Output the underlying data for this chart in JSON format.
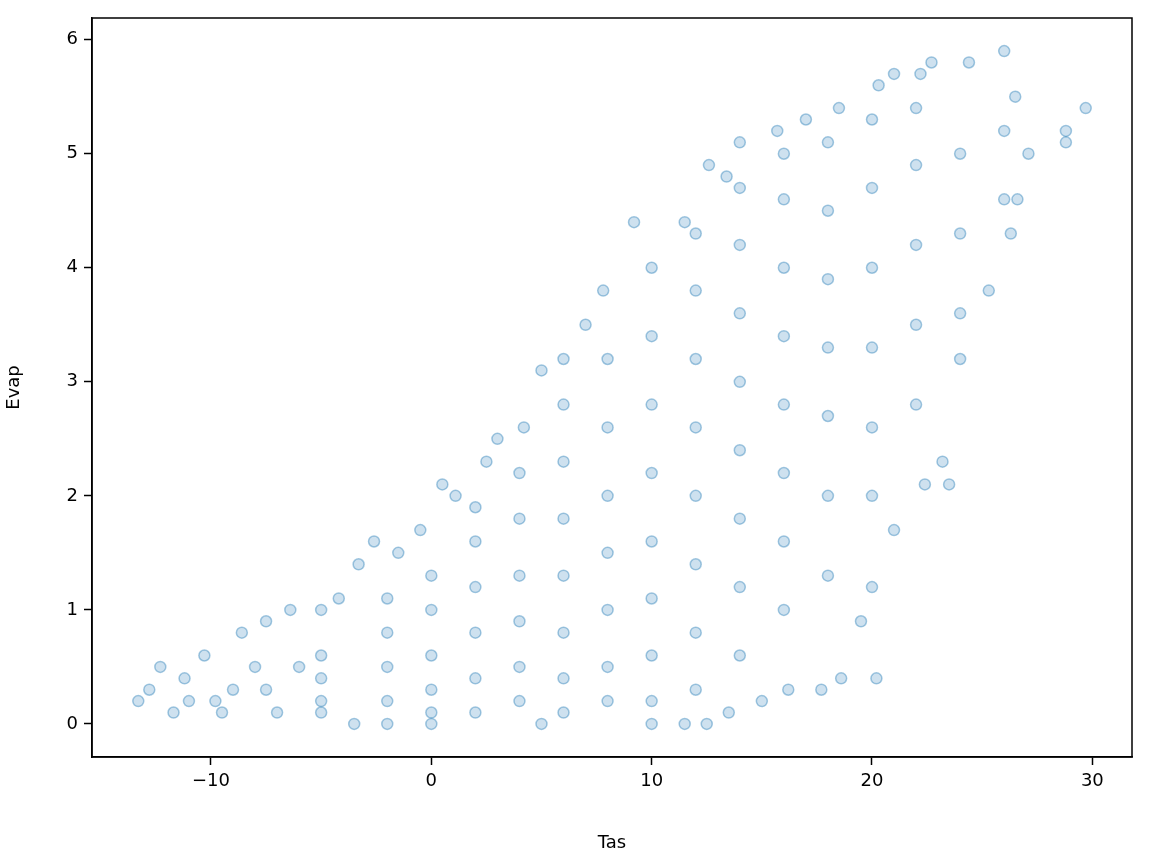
{
  "chart_data": {
    "type": "scatter",
    "xlabel": "Tas",
    "ylabel": "Evap",
    "color": "#1f77b4",
    "marker": "circle",
    "legend": false,
    "grid": false,
    "xlim": [
      -15.4,
      31.8
    ],
    "ylim": [
      -0.29,
      6.19
    ],
    "xticks": [
      {
        "value": -10,
        "label": "−10"
      },
      0,
      10,
      20,
      30
    ],
    "yticks": [
      0,
      1,
      2,
      3,
      4,
      5,
      6
    ],
    "x": [
      -13.3,
      -12.8,
      -12.3,
      -11.7,
      -11.2,
      -10.3,
      -9.8,
      -8.6,
      -8.0,
      -7.5,
      -6.4,
      -5.0,
      -4.2,
      -3.3,
      -2.6,
      -1.5,
      -0.5,
      0.5,
      1.1,
      2.5,
      3.0,
      4.2,
      5.0,
      6.0,
      7.0,
      7.8,
      9.2,
      10.0,
      11.5,
      12.6,
      13.4,
      14.0,
      15.7,
      17.0,
      18.5,
      20.3,
      21.0,
      22.2,
      22.7,
      24.4,
      26.0,
      26.5,
      28.8,
      29.7,
      28.8,
      27.1,
      26.6,
      26.3,
      25.3,
      24.0,
      23.5,
      23.2,
      22.4,
      21.0,
      20.0,
      20.2,
      19.5,
      18.6,
      17.7,
      16.2,
      15.0,
      13.5,
      12.5,
      11.5,
      10.0,
      5.0,
      0.0,
      -3.5,
      -2.0,
      -9.5,
      -7.0,
      -5.0,
      -7.5,
      -9.0,
      -11.0,
      -6.0,
      -5,
      -5,
      -5,
      -2,
      -2,
      -2,
      -2,
      0,
      0,
      0,
      0,
      0,
      2,
      2,
      2,
      2,
      2,
      2,
      4,
      4,
      4,
      4,
      4,
      4,
      6,
      6,
      6,
      6,
      6,
      6,
      6,
      8,
      8,
      8,
      8,
      8,
      8,
      8,
      10,
      10,
      10,
      10,
      10,
      10,
      10,
      12,
      12,
      12,
      12,
      12,
      12,
      12,
      12,
      14,
      14,
      14,
      14,
      14,
      14,
      14,
      14,
      16,
      16,
      16,
      16,
      16,
      16,
      16,
      16,
      18,
      18,
      18,
      18,
      18,
      18,
      18,
      20,
      20,
      20,
      20,
      20,
      20,
      22,
      22,
      22,
      22,
      22,
      24,
      24,
      24,
      26,
      26
    ],
    "values": [
      0.2,
      0.3,
      0.5,
      0.1,
      0.4,
      0.6,
      0.2,
      0.8,
      0.5,
      0.9,
      1.0,
      1.0,
      1.1,
      1.4,
      1.6,
      1.5,
      1.7,
      2.1,
      2.0,
      2.3,
      2.5,
      2.6,
      3.1,
      3.2,
      3.5,
      3.8,
      4.4,
      4.0,
      4.4,
      4.9,
      4.8,
      5.1,
      5.2,
      5.3,
      5.4,
      5.6,
      5.7,
      5.7,
      5.8,
      5.8,
      5.9,
      5.5,
      5.2,
      5.4,
      5.1,
      5.0,
      4.6,
      4.3,
      3.8,
      3.2,
      2.1,
      2.3,
      2.1,
      1.7,
      1.2,
      0.4,
      0.9,
      0.4,
      0.3,
      0.3,
      0.2,
      0.1,
      0.0,
      0.0,
      0.0,
      0.0,
      0.0,
      0.0,
      0.0,
      0.1,
      0.1,
      0.1,
      0.3,
      0.3,
      0.2,
      0.5,
      0.2,
      0.4,
      0.6,
      0.2,
      0.5,
      0.8,
      1.1,
      0.1,
      0.3,
      0.6,
      1.0,
      1.3,
      0.1,
      0.4,
      0.8,
      1.2,
      1.6,
      1.9,
      0.2,
      0.5,
      0.9,
      1.3,
      1.8,
      2.2,
      0.1,
      0.4,
      0.8,
      1.3,
      1.8,
      2.3,
      2.8,
      0.2,
      0.5,
      1.0,
      1.5,
      2.0,
      2.6,
      3.2,
      0.2,
      0.6,
      1.1,
      1.6,
      2.2,
      2.8,
      3.4,
      0.3,
      0.8,
      1.4,
      2.0,
      2.6,
      3.2,
      3.8,
      4.3,
      0.6,
      1.2,
      1.8,
      2.4,
      3.0,
      3.6,
      4.2,
      4.7,
      1.0,
      1.6,
      2.2,
      2.8,
      3.4,
      4.0,
      4.6,
      5.0,
      1.3,
      2.0,
      2.7,
      3.3,
      3.9,
      4.5,
      5.1,
      2.0,
      2.6,
      3.3,
      4.0,
      4.7,
      5.3,
      2.8,
      3.5,
      4.2,
      4.9,
      5.4,
      3.6,
      4.3,
      5.0,
      4.6,
      5.2
    ]
  }
}
